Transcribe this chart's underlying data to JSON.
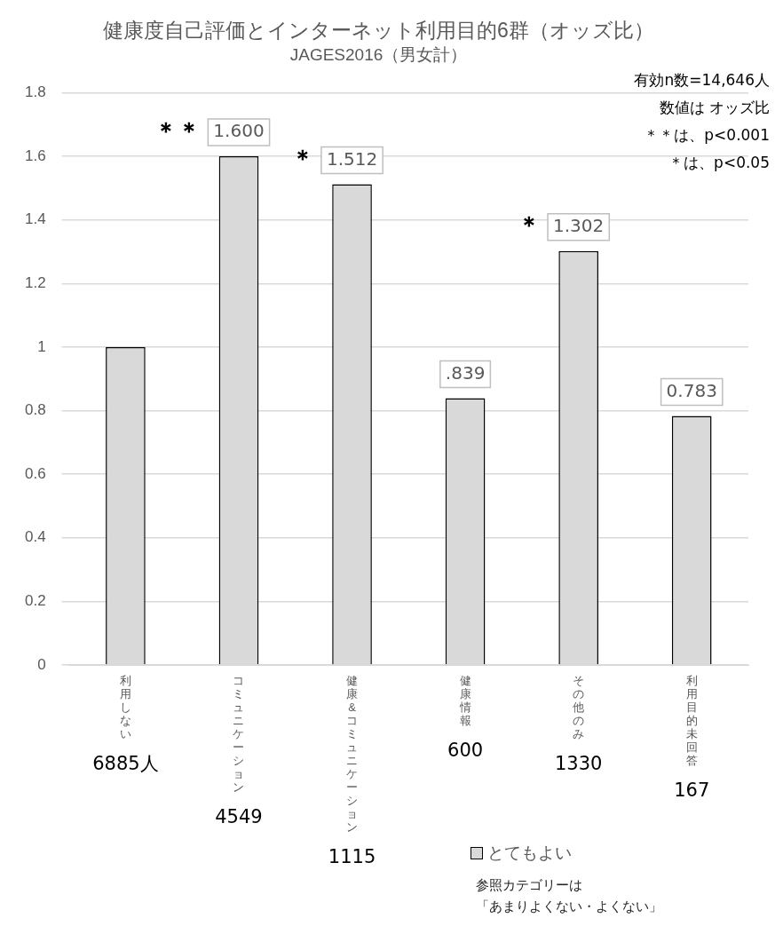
{
  "chart_data": {
    "type": "bar",
    "title": "健康度自己評価とインターネット利用目的6群（オッズ比）",
    "subtitle": "JAGES2016（男女計）",
    "categories": [
      "利用しない",
      "コミュニケーション",
      "健康&コミュニケーション",
      "健康情報",
      "その他のみ",
      "利用目的未回答"
    ],
    "series": [
      {
        "name": "とてもよい",
        "color": "#d9d9d9",
        "values": [
          1,
          1.6,
          1.512,
          0.839,
          1.302,
          0.783
        ],
        "value_labels": [
          null,
          "1.600",
          "1.512",
          ".839",
          "1.302",
          "0.783"
        ]
      }
    ],
    "ylim": [
      0,
      1.8
    ],
    "yticks": [
      0,
      0.2,
      0.4,
      0.6,
      0.8,
      1,
      1.2,
      1.4,
      1.6,
      1.8
    ],
    "grid": "y",
    "legend": "bottom",
    "annotations": [
      "有効n数=14,646人",
      "数値は オッズ比",
      "＊＊は、p<0.001",
      "＊は、p<0.05",
      "参照カテゴリーは",
      "「あまりよくない・よくない」",
      {
        "text": "＊＊",
        "x": "コミュニケーション",
        "y": 1.6
      },
      {
        "text": "＊",
        "x": "健康&コミュニケーション",
        "y": 1.512
      },
      {
        "text": "＊",
        "x": "その他のみ",
        "y": 1.302
      },
      "6885人",
      "4549",
      "1115",
      "600",
      "1330",
      "167"
    ]
  }
}
